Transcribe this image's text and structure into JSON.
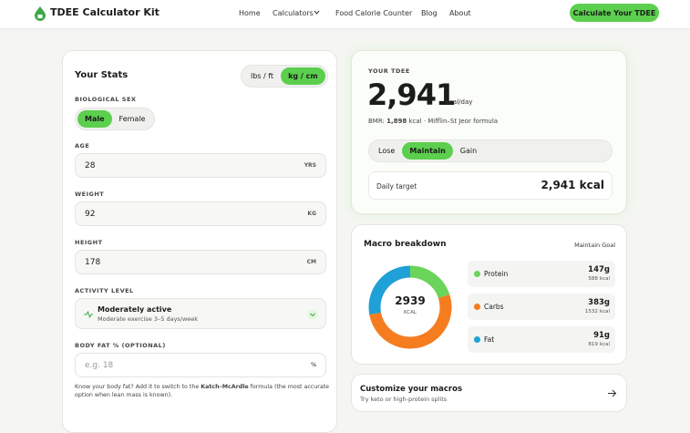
{
  "header": {
    "logo": "TDEE Calculator Kit",
    "nav": [
      "Home",
      "Calculators",
      "Food Calorie Counter",
      "Blog",
      "About"
    ],
    "cta": "Calculate Your TDEE"
  },
  "stats": {
    "title": "Your Stats",
    "units": [
      "lbs / ft",
      "kg / cm"
    ],
    "sex_label": "BIOLOGICAL SEX",
    "sex": [
      "Male",
      "Female"
    ],
    "fields": [
      {
        "label": "AGE",
        "value": "28",
        "unit": "YRS"
      },
      {
        "label": "WEIGHT",
        "value": "92",
        "unit": "KG"
      },
      {
        "label": "HEIGHT",
        "value": "178",
        "unit": "CM"
      }
    ],
    "activity": {
      "label": "ACTIVITY LEVEL",
      "name": "Moderately active",
      "desc": "Moderate exercise 3–5 days/week"
    },
    "body_fat": {
      "label": "BODY FAT % (OPTIONAL)",
      "placeholder": "e.g. 18",
      "unit": "%"
    },
    "help": [
      "Know your body fat? Add it to switch to the ",
      "Katch–McArdle",
      " formula (the most accurate option when lean mass is known)."
    ]
  },
  "tdee": {
    "label": "YOUR TDEE",
    "value": "2,941",
    "unit": "kcal/day",
    "bmr": [
      "BMR: ",
      "1,898",
      " kcal · Mifflin–St Jeor formula"
    ],
    "goals": [
      "Lose",
      "Maintain",
      "Gain"
    ],
    "target_label": "Daily target",
    "target": "2,941 kcal"
  },
  "macros": {
    "title": "Macro breakdown",
    "goal": "Maintain Goal",
    "total": "2939",
    "total_unit": "KCAL",
    "items": [
      {
        "name": "Protein",
        "color": "#6bd45a",
        "grams": "147g",
        "kcal": 588,
        "kcal_unit": "kcal"
      },
      {
        "name": "Carbs",
        "color": "#f57c1f",
        "grams": "383g",
        "kcal": 1532,
        "kcal_unit": "kcal"
      },
      {
        "name": "Fat",
        "color": "#1fa0d6",
        "grams": "91g",
        "kcal": 819,
        "kcal_unit": "kcal"
      }
    ]
  },
  "custom": {
    "title": "Customize your macros",
    "subtitle": "Try keto or high-protein splits"
  }
}
